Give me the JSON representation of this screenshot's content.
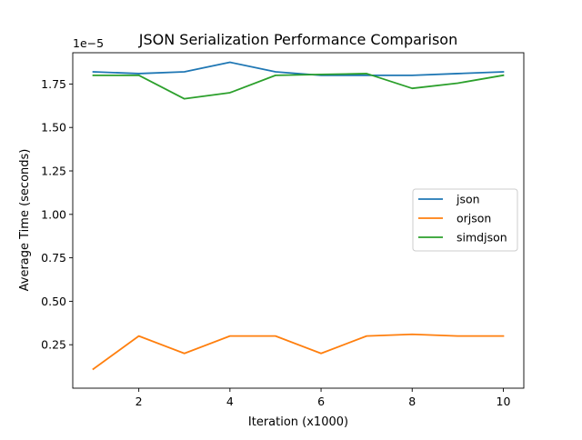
{
  "chart_data": {
    "type": "line",
    "title": "JSON Serialization Performance Comparison",
    "xlabel": "Iteration (x1000)",
    "ylabel": "Average Time (seconds)",
    "y_offset_label": "1e−5",
    "x": [
      1,
      2,
      3,
      4,
      5,
      6,
      7,
      8,
      9,
      10
    ],
    "xlim": [
      0.55,
      10.45
    ],
    "ylim": [
      0.0,
      1.93
    ],
    "x_ticks": [
      2,
      4,
      6,
      8,
      10
    ],
    "x_tick_labels": [
      "2",
      "4",
      "6",
      "8",
      "10"
    ],
    "y_ticks": [
      0.25,
      0.5,
      0.75,
      1.0,
      1.25,
      1.5,
      1.75
    ],
    "y_tick_labels": [
      "0.25",
      "0.50",
      "0.75",
      "1.00",
      "1.25",
      "1.50",
      "1.75"
    ],
    "legend_position": "center-right",
    "grid": false,
    "series": [
      {
        "name": "json",
        "color": "#1f77b4",
        "values": [
          1.82,
          1.81,
          1.82,
          1.875,
          1.82,
          1.8,
          1.8,
          1.8,
          1.81,
          1.82
        ]
      },
      {
        "name": "orjson",
        "color": "#ff7f0e",
        "values": [
          0.11,
          0.3,
          0.2,
          0.3,
          0.3,
          0.2,
          0.3,
          0.31,
          0.3,
          0.3
        ]
      },
      {
        "name": "simdjson",
        "color": "#2ca02c",
        "values": [
          1.8,
          1.8,
          1.665,
          1.7,
          1.8,
          1.805,
          1.81,
          1.725,
          1.755,
          1.8
        ]
      }
    ]
  }
}
